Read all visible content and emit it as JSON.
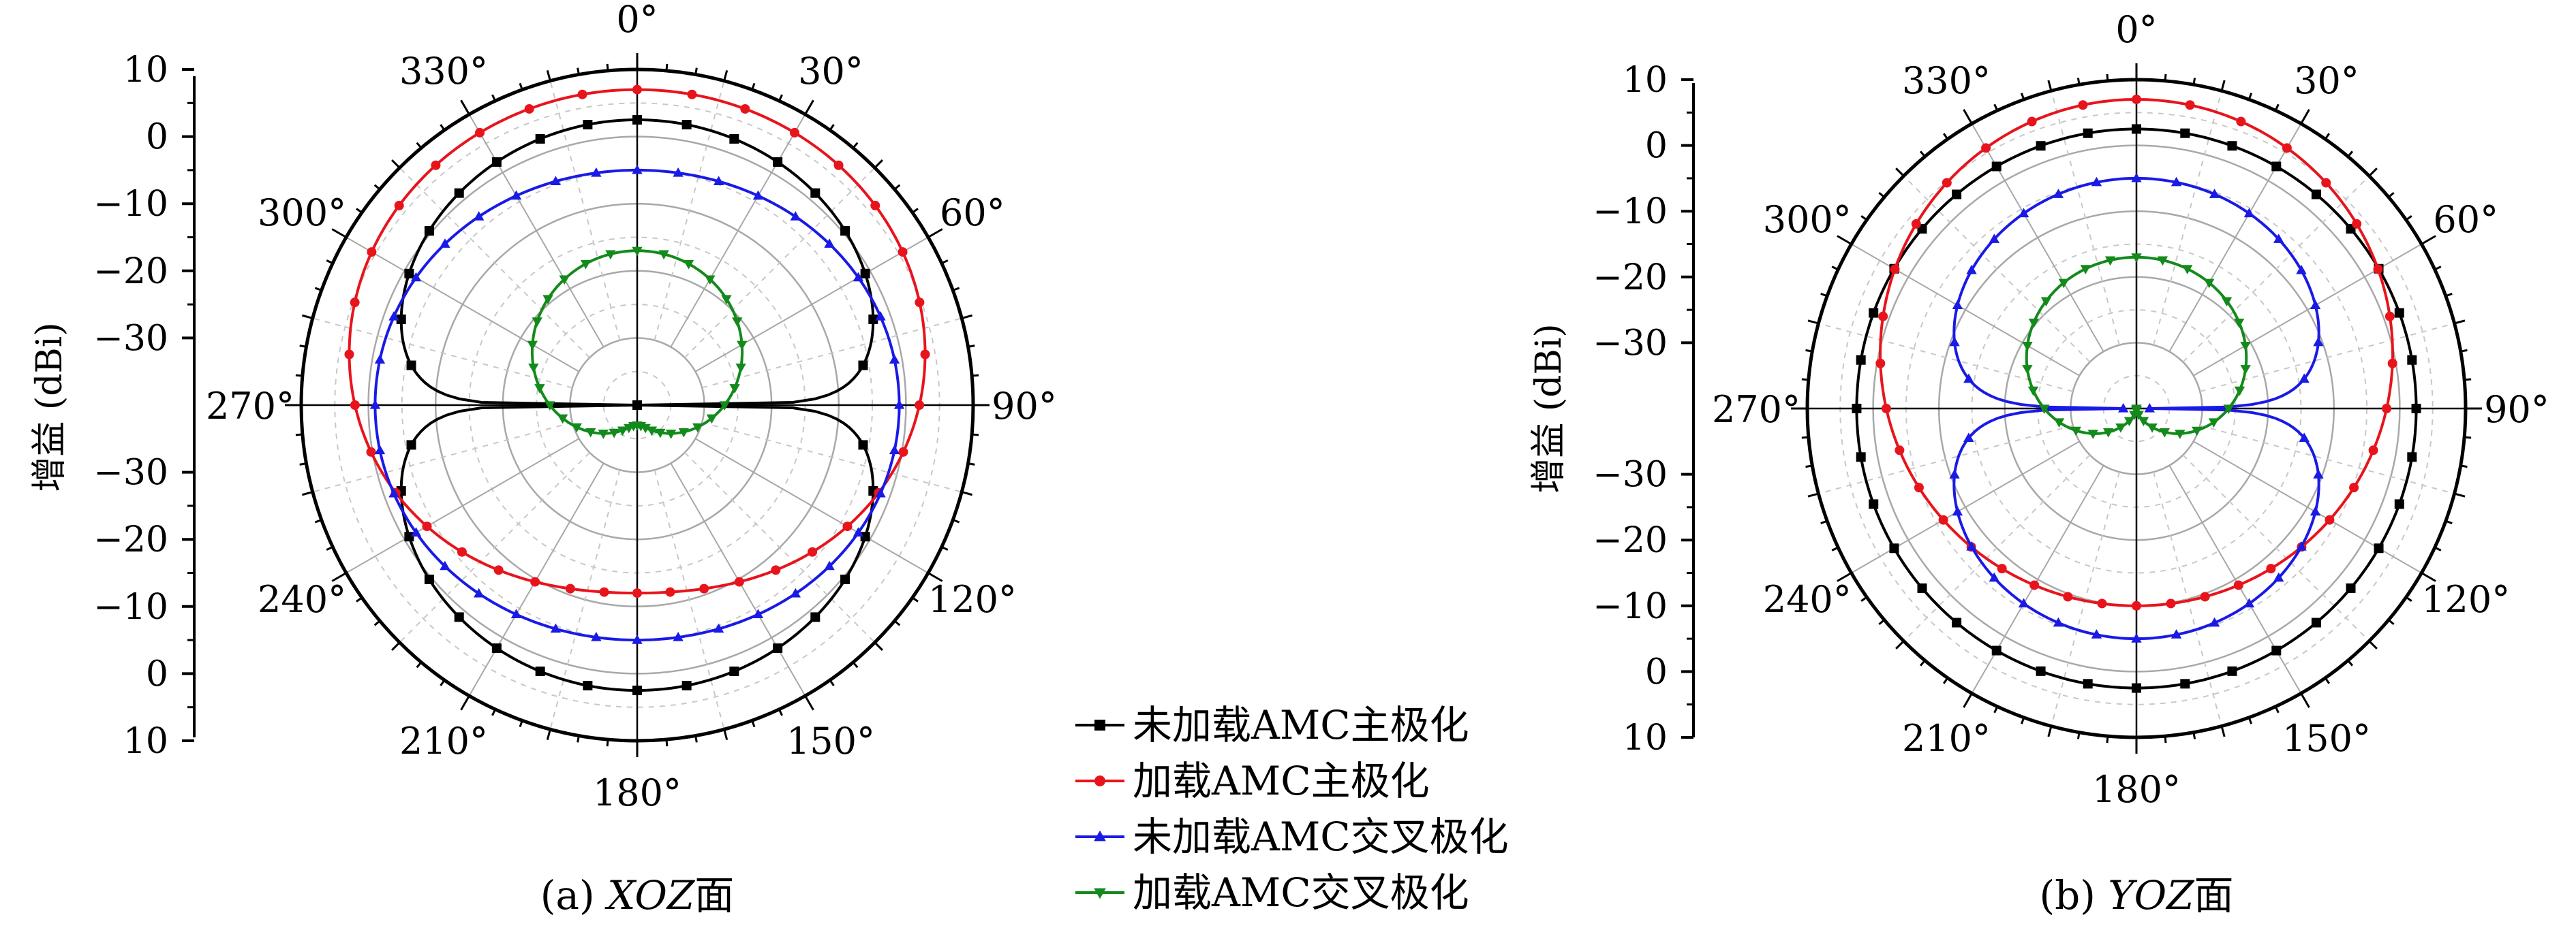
{
  "figure": {
    "y_axis_label": "增益 (dBi)",
    "y_tick_labels": [
      "10",
      "0",
      "−10",
      "−20",
      "−30",
      "−30",
      "−20",
      "−10",
      "0",
      "10"
    ],
    "angle_labels": [
      "0°",
      "30°",
      "60°",
      "90°",
      "120°",
      "150°",
      "180°",
      "210°",
      "240°",
      "270°",
      "300°",
      "330°"
    ]
  },
  "legend": {
    "items": [
      {
        "label": "未加载AMC主极化",
        "color": "#000000",
        "marker": "square"
      },
      {
        "label": "加载AMC主极化",
        "color": "#e8141c",
        "marker": "circle"
      },
      {
        "label": "未加载AMC交叉极化",
        "color": "#1a1ae6",
        "marker": "triangle-up"
      },
      {
        "label": "加载AMC交叉极化",
        "color": "#138a1b",
        "marker": "triangle-down"
      }
    ]
  },
  "chart_data": [
    {
      "type": "line",
      "polar": true,
      "caption": "(a) XOZ面",
      "caption_prefix": "(a) ",
      "caption_italic": "XOZ",
      "caption_suffix": "面",
      "r_ticks": [
        10,
        0,
        -10,
        -20,
        -30
      ],
      "r_range": [
        -40,
        10
      ],
      "angle_ticks_deg": [
        0,
        30,
        60,
        90,
        120,
        150,
        180,
        210,
        240,
        270,
        300,
        330
      ],
      "series": [
        {
          "name": "未加载AMC主极化",
          "pattern": "fig8",
          "peak_db": 2.5,
          "min_db": -40
        },
        {
          "name": "加载AMC主极化",
          "pattern": "cardioid",
          "front_db": 7,
          "back_db": -12,
          "side_db": 2
        },
        {
          "name": "未加载AMC交叉极化",
          "pattern": "egg",
          "front_db": -5,
          "back_db": -5,
          "side_db": -1
        },
        {
          "name": "加载AMC交叉极化",
          "pattern": "offset-circle",
          "front_db": -17,
          "back_db": -37,
          "side_db": -27
        }
      ]
    },
    {
      "type": "line",
      "polar": true,
      "caption": "(b) YOZ面",
      "caption_prefix": "(b) ",
      "caption_italic": "YOZ",
      "caption_suffix": "面",
      "r_ticks": [
        10,
        0,
        -10,
        -20,
        -30
      ],
      "r_range": [
        -40,
        10
      ],
      "angle_ticks_deg": [
        0,
        30,
        60,
        90,
        120,
        150,
        180,
        210,
        240,
        270,
        300,
        330
      ],
      "series": [
        {
          "name": "未加载AMC主极化",
          "pattern": "omni",
          "peak_db": 2.5
        },
        {
          "name": "加载AMC主极化",
          "pattern": "cardioid",
          "front_db": 7,
          "back_db": -10,
          "side_db": -2
        },
        {
          "name": "未加载AMC交叉极化",
          "pattern": "horizontal-null",
          "front_db": -5,
          "back_db": -5,
          "min_db": -38
        },
        {
          "name": "加载AMC交叉极化",
          "pattern": "offset-circle",
          "front_db": -17,
          "back_db": -40,
          "side_db": -26
        }
      ]
    }
  ]
}
